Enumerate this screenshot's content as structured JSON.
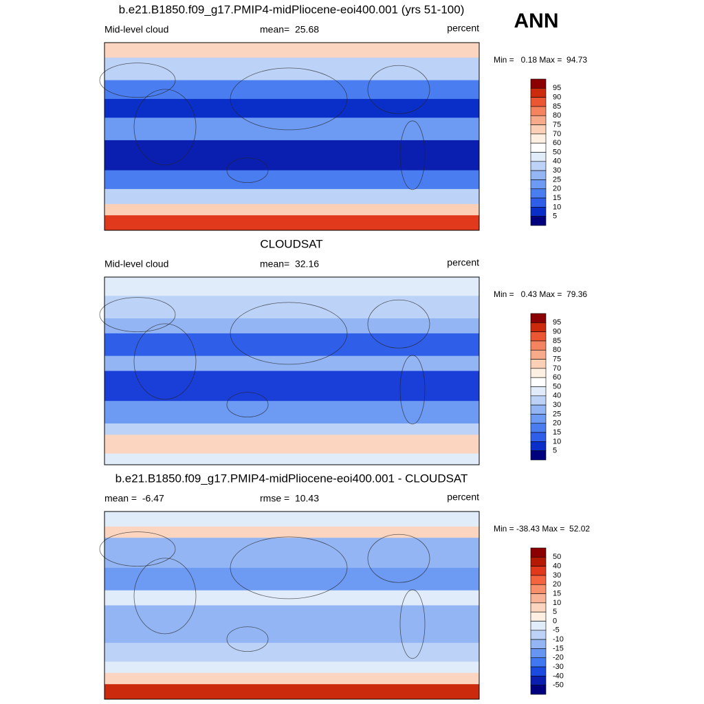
{
  "header": {
    "season": "ANN"
  },
  "panels": [
    {
      "title": "b.e21.B1850.f09_g17.PMIP4-midPliocene-eoi400.001 (yrs 51-100)",
      "left": "Mid-level cloud",
      "center": "mean=  25.68",
      "right": "percent",
      "minmax": "Min =   0.18 Max =  94.73",
      "colorbar": {
        "labels": [
          95,
          90,
          85,
          80,
          75,
          70,
          60,
          50,
          40,
          30,
          25,
          20,
          15,
          10,
          5
        ],
        "colors": [
          "#8b0000",
          "#cc2a0c",
          "#eb5733",
          "#f4845f",
          "#f8ab8a",
          "#fbd0b6",
          "#fdf0e2",
          "#ffffff",
          "#e0ecfa",
          "#bcd2f7",
          "#93b5f4",
          "#6d9af2",
          "#4a7ef0",
          "#2f5fe8",
          "#0a2fc8",
          "#00007f"
        ]
      }
    },
    {
      "title": "CLOUDSAT",
      "left": "Mid-level cloud",
      "center": "mean=  32.16",
      "right": "percent",
      "minmax": "Min =   0.43 Max =  79.36",
      "colorbar": {
        "labels": [
          95,
          90,
          85,
          80,
          75,
          70,
          60,
          50,
          40,
          30,
          25,
          20,
          15,
          10,
          5
        ],
        "colors": [
          "#8b0000",
          "#cc2a0c",
          "#eb5733",
          "#f4845f",
          "#f8ab8a",
          "#fbd0b6",
          "#fdf0e2",
          "#ffffff",
          "#e0ecfa",
          "#bcd2f7",
          "#93b5f4",
          "#6d9af2",
          "#4a7ef0",
          "#2f5fe8",
          "#0a2fc8",
          "#00007f"
        ]
      }
    },
    {
      "title": "b.e21.B1850.f09_g17.PMIP4-midPliocene-eoi400.001 - CLOUDSAT",
      "left": "mean =  -6.47",
      "center": "rmse =  10.43",
      "right": "percent",
      "minmax": "Min = -38.43 Max =  52.02",
      "colorbar": {
        "labels": [
          50,
          40,
          30,
          20,
          15,
          10,
          5,
          0,
          -5,
          -10,
          -15,
          -20,
          -30,
          -40,
          -50
        ],
        "colors": [
          "#8b0000",
          "#b51a05",
          "#e0391c",
          "#f2653f",
          "#f7906b",
          "#f9b497",
          "#fbd5bf",
          "#fdf0e2",
          "#e0ecfa",
          "#bcd2f7",
          "#93b5f4",
          "#6796f2",
          "#3f78f0",
          "#1a4ae0",
          "#0a1fb0",
          "#00007f"
        ]
      }
    }
  ]
}
